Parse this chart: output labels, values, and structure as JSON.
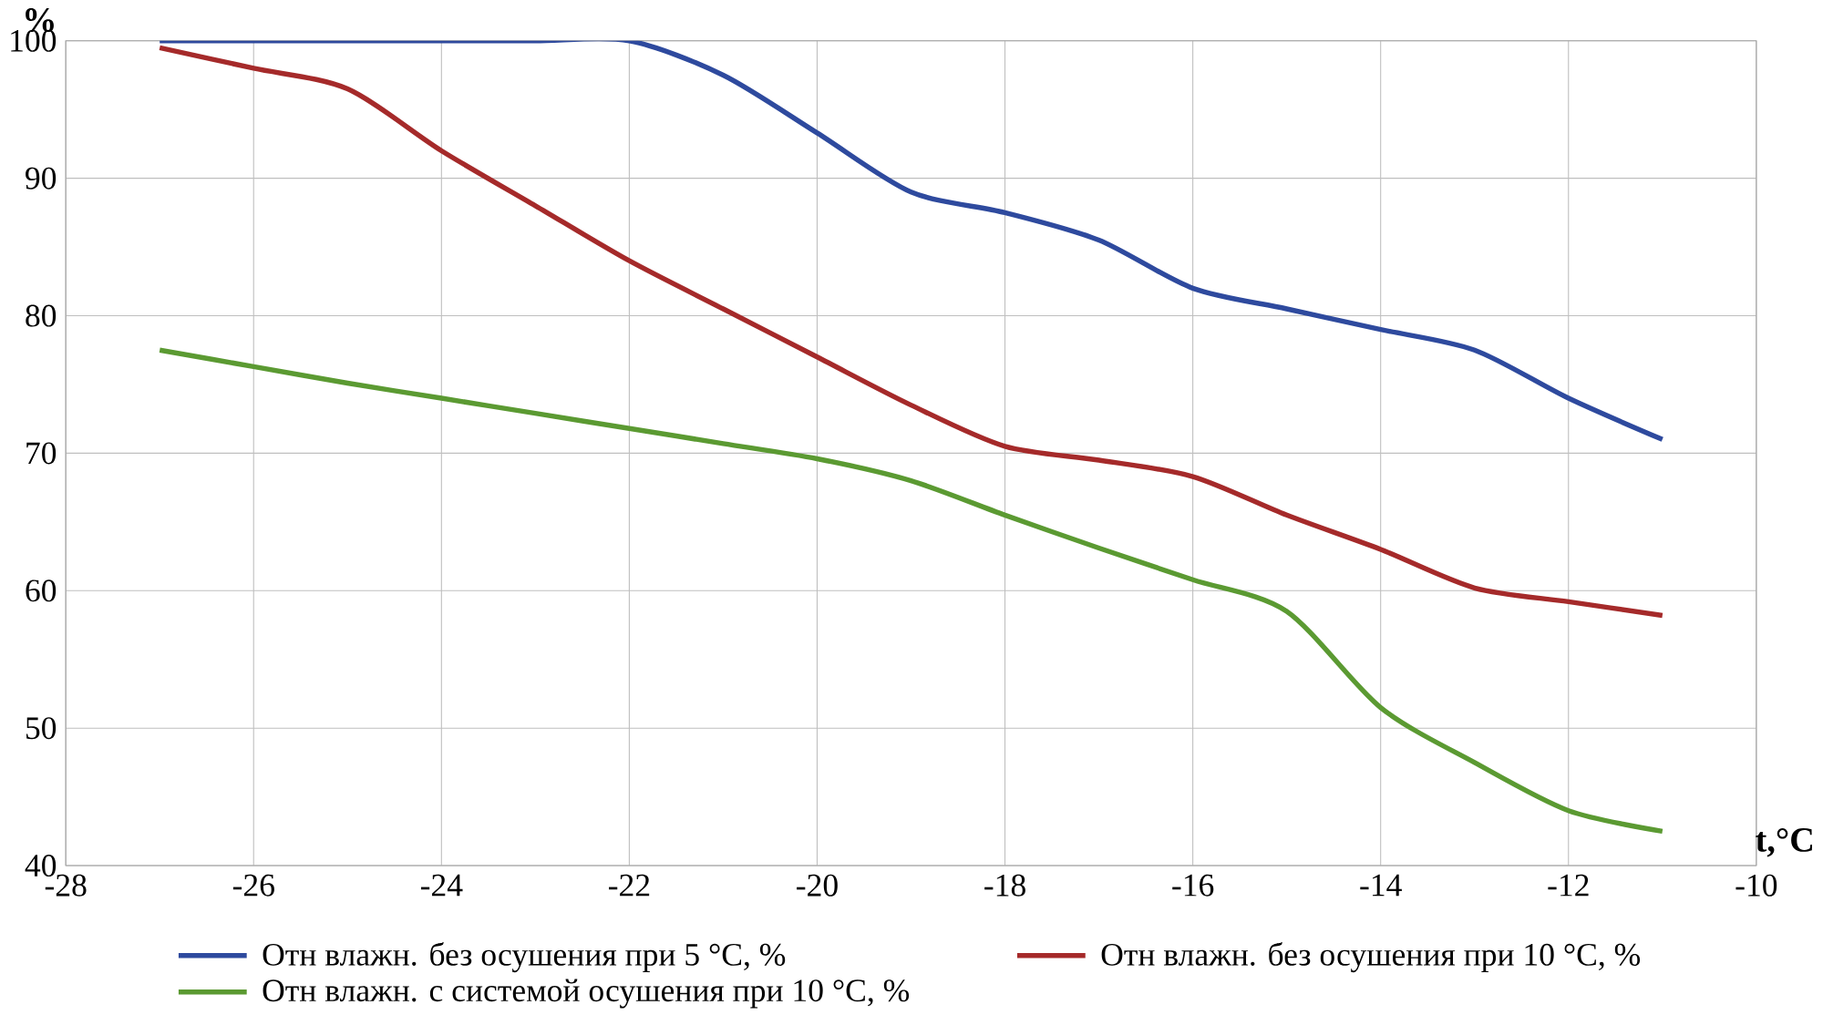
{
  "chart_data": {
    "type": "line",
    "ylabel": "%",
    "xlabel": "t,°C",
    "xlim": [
      -28,
      -10
    ],
    "ylim": [
      40,
      100
    ],
    "xticks": [
      -28,
      -26,
      -24,
      -22,
      -20,
      -18,
      -16,
      -14,
      -12,
      -10
    ],
    "yticks": [
      40,
      50,
      60,
      70,
      80,
      90,
      100
    ],
    "x": [
      -27,
      -26,
      -25,
      -24,
      -23,
      -22,
      -21,
      -20,
      -19,
      -18,
      -17,
      -16,
      -15,
      -14,
      -13,
      -12,
      -11
    ],
    "series": [
      {
        "name": "Отн влажн. без осушения при 5 °С, %",
        "color": "#2e4a9e",
        "values": [
          100,
          100,
          100,
          100,
          100,
          100,
          97.5,
          93.3,
          89,
          87.5,
          85.5,
          82,
          80.5,
          79,
          77.5,
          74,
          71
        ]
      },
      {
        "name": "Отн влажн. без осушения при 10 °С, %",
        "color": "#a52a2a",
        "values": [
          99.5,
          98,
          96.5,
          92,
          88,
          84,
          80.5,
          77,
          73.5,
          70.5,
          69.5,
          68.3,
          65.5,
          63,
          60.2,
          59.2,
          58.2
        ]
      },
      {
        "name": "Отн влажн. с системой осушения при 10 °С, %",
        "color": "#5b9a32",
        "values": [
          77.5,
          76.3,
          75.1,
          74,
          72.9,
          71.8,
          70.7,
          69.6,
          68,
          65.5,
          63.1,
          60.8,
          58.5,
          51.5,
          47.5,
          44,
          42.5
        ]
      }
    ],
    "grid": true,
    "legend": "bottom",
    "marker": "none",
    "line_style": "solid"
  }
}
